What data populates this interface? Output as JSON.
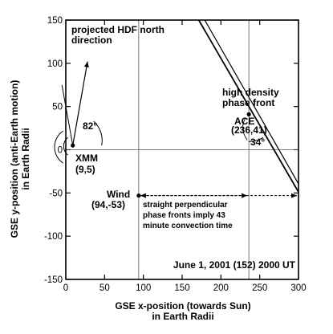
{
  "chart_data": {
    "type": "diagram",
    "x_axis": {
      "label_line1": "GSE x-position (towards Sun)",
      "label_line2": "in Earth Radii",
      "range": [
        0,
        300
      ],
      "ticks": [
        0,
        50,
        100,
        150,
        200,
        250,
        300
      ],
      "tick_labels": [
        "0",
        "50",
        "100",
        "150",
        "200",
        "250",
        "300"
      ]
    },
    "y_axis": {
      "label_line1": "GSE y-position (anti-Earth motion)",
      "label_line2": "in Earth Radii",
      "range": [
        -150,
        150
      ],
      "ticks": [
        150,
        100,
        50,
        0,
        -50,
        -100,
        -150
      ],
      "tick_labels": [
        "150",
        "100",
        "50",
        "0",
        "-50",
        "-100",
        "-150"
      ]
    },
    "reference_lines": {
      "vertical_x": [
        94,
        236
      ],
      "horizontal_y": [
        0
      ]
    },
    "spacecraft": [
      {
        "name": "XMM",
        "coords": "(9,5)",
        "x": 9,
        "y": 5
      },
      {
        "name": "ACE",
        "coords": "(236,41)",
        "x": 236,
        "y": 41
      },
      {
        "name": "Wind",
        "coords": "(94,-53)",
        "x": 94,
        "y": -53
      }
    ],
    "phase_front": {
      "label_line1": "high density",
      "label_line2": "phase front",
      "angle_label": "34°",
      "lines": [
        {
          "x1": 152,
          "y1": 180,
          "x2": 302,
          "y2": -52
        },
        {
          "x1": 160,
          "y1": 180,
          "x2": 308,
          "y2": -52
        }
      ]
    },
    "hdf_direction": {
      "label_line1": "projected HDF north",
      "label_line2": "direction",
      "angle_label": "82°",
      "from": [
        9,
        5
      ],
      "to": [
        28,
        102
      ]
    },
    "convection": {
      "text_line1": "straight perpendicular",
      "text_line2": "phase fronts imply 43",
      "text_line3": "minute convection time",
      "from_x": 94,
      "to_x": 236,
      "y": -53,
      "extend_to_x": 300
    },
    "footer_text": "June 1, 2001 (152) 2000 UT"
  }
}
